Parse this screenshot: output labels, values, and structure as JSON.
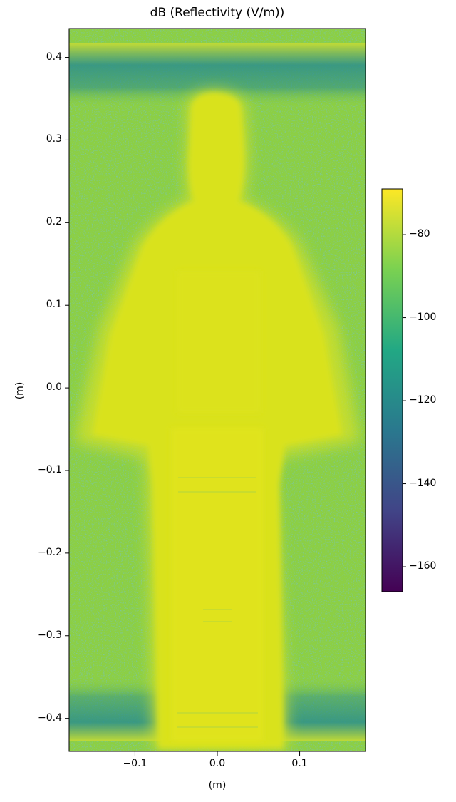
{
  "chart_data": {
    "type": "heatmap",
    "title": "dB (Reflectivity (V/m))",
    "xlabel": "(m)",
    "ylabel": "(m)",
    "xlim": [
      -0.18,
      0.18
    ],
    "ylim": [
      -0.44,
      0.435
    ],
    "x_ticks": [
      "−0.1",
      "0.0",
      "0.1"
    ],
    "x_tick_values": [
      -0.1,
      0.0,
      0.1
    ],
    "y_ticks": [
      "0.4",
      "0.3",
      "0.2",
      "0.1",
      "0.0",
      "−0.1",
      "−0.2",
      "−0.3",
      "−0.4"
    ],
    "y_tick_values": [
      0.4,
      0.3,
      0.2,
      0.1,
      0.0,
      -0.1,
      -0.2,
      -0.3,
      -0.4
    ],
    "colorbar": {
      "colormap": "viridis",
      "range": [
        -166,
        -69
      ],
      "ticks": [
        "−80",
        "−100",
        "−120",
        "−140",
        "−160"
      ],
      "tick_values": [
        -80,
        -100,
        -120,
        -140,
        -160
      ]
    },
    "colors": {
      "background": "#8ccf44",
      "silhouette": "#d8e21d",
      "dark_band": "#2f8c8a",
      "viridis": [
        "#440154",
        "#414487",
        "#2a788e",
        "#22a884",
        "#7ad151",
        "#fde725"
      ]
    }
  }
}
